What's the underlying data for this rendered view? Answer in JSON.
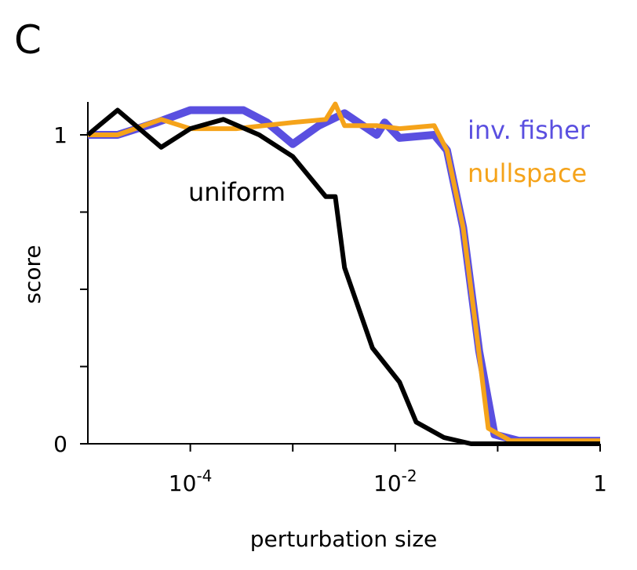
{
  "panel_label": "C",
  "chart_data": {
    "type": "line",
    "title": "",
    "xlabel": "perturbation size",
    "ylabel": "score",
    "xscale": "log",
    "xlim": [
      1e-05,
      1
    ],
    "ylim": [
      0,
      1.1
    ],
    "x_ticks": [
      {
        "value": 0.0001,
        "base": "10",
        "exp": "-4"
      },
      {
        "value": 0.01,
        "base": "10",
        "exp": "-2"
      },
      {
        "value": 1,
        "base": "1",
        "exp": ""
      }
    ],
    "x_minor_ticks": [
      0.001,
      0.1
    ],
    "y_ticks": [
      {
        "value": 0,
        "label": "0"
      },
      {
        "value": 0.25,
        "label": ""
      },
      {
        "value": 0.5,
        "label": ""
      },
      {
        "value": 0.75,
        "label": ""
      },
      {
        "value": 1,
        "label": "1"
      }
    ],
    "grid": false,
    "series": [
      {
        "name": "inv. fisher",
        "color": "#5a4fe0",
        "x": [
          1e-05,
          1.95e-05,
          4.7e-05,
          0.0001,
          0.00033,
          0.00056,
          0.001,
          0.0018,
          0.0032,
          0.0066,
          0.0079,
          0.011,
          0.024,
          0.032,
          0.046,
          0.066,
          0.093,
          0.16,
          1
        ],
        "y": [
          1.0,
          1.0,
          1.04,
          1.08,
          1.08,
          1.04,
          0.97,
          1.03,
          1.07,
          1.0,
          1.04,
          0.99,
          1.0,
          0.95,
          0.7,
          0.3,
          0.03,
          0.01,
          0.01
        ]
      },
      {
        "name": "nullspace",
        "color": "#f5a31a",
        "x": [
          1e-05,
          1.95e-05,
          5.2e-05,
          0.0001,
          0.00028,
          0.001,
          0.0021,
          0.0026,
          0.0032,
          0.0066,
          0.011,
          0.024,
          0.032,
          0.046,
          0.06,
          0.081,
          0.133,
          1
        ],
        "y": [
          1.0,
          1.0,
          1.05,
          1.02,
          1.02,
          1.04,
          1.05,
          1.1,
          1.03,
          1.03,
          1.02,
          1.03,
          0.95,
          0.7,
          0.4,
          0.05,
          0.01,
          0.01
        ]
      },
      {
        "name": "uniform",
        "color": "#000000",
        "x": [
          1e-05,
          1.95e-05,
          5.2e-05,
          0.0001,
          0.00021,
          0.00047,
          0.001,
          0.0021,
          0.0026,
          0.0032,
          0.006,
          0.011,
          0.016,
          0.03,
          0.055,
          1
        ],
        "y": [
          1.0,
          1.08,
          0.96,
          1.02,
          1.05,
          1.0,
          0.93,
          0.8,
          0.8,
          0.57,
          0.31,
          0.2,
          0.07,
          0.02,
          0.0,
          0.0
        ]
      }
    ],
    "annotations": [
      "inv. fisher",
      "nullspace",
      "uniform"
    ]
  }
}
